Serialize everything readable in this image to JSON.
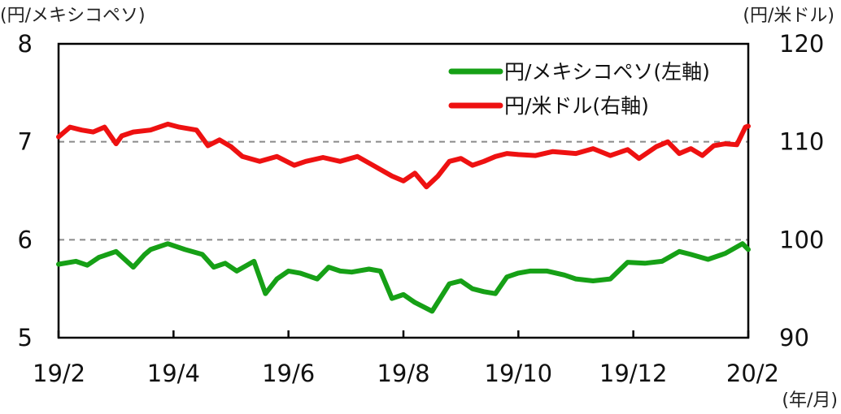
{
  "chart_data": {
    "type": "line",
    "ylabel_left": "(円/メキシコペソ)",
    "ylabel_right": "(円/米ドル)",
    "xlabel": "(年/月)",
    "x_ticks": [
      "19/2",
      "19/4",
      "19/6",
      "19/8",
      "19/10",
      "19/12",
      "20/2"
    ],
    "x_range": [
      0,
      12
    ],
    "y_left": {
      "range": [
        5,
        8
      ],
      "ticks": [
        "5",
        "6",
        "7",
        "8"
      ]
    },
    "y_right": {
      "range": [
        90,
        120
      ],
      "ticks": [
        "90",
        "100",
        "110",
        "120"
      ]
    },
    "gridlines_dashed": [
      6,
      7
    ],
    "legend_position": "top-right",
    "series": [
      {
        "name": "円/メキシコペソ(左軸)",
        "axis": "left",
        "color": "#16a016",
        "x": [
          0,
          0.3,
          0.5,
          0.7,
          1.0,
          1.3,
          1.5,
          1.6,
          1.9,
          2.2,
          2.5,
          2.7,
          2.9,
          3.1,
          3.4,
          3.6,
          3.8,
          4.0,
          4.2,
          4.5,
          4.7,
          4.9,
          5.1,
          5.4,
          5.6,
          5.8,
          6.0,
          6.2,
          6.5,
          6.8,
          7.0,
          7.2,
          7.4,
          7.6,
          7.8,
          8.0,
          8.2,
          8.5,
          8.8,
          9.0,
          9.3,
          9.6,
          9.9,
          10.2,
          10.5,
          10.8,
          11.0,
          11.3,
          11.6,
          11.9,
          12.0
        ],
        "values": [
          5.75,
          5.78,
          5.74,
          5.82,
          5.88,
          5.72,
          5.85,
          5.9,
          5.96,
          5.9,
          5.85,
          5.72,
          5.76,
          5.68,
          5.78,
          5.45,
          5.6,
          5.68,
          5.66,
          5.6,
          5.72,
          5.68,
          5.67,
          5.7,
          5.68,
          5.4,
          5.44,
          5.36,
          5.27,
          5.55,
          5.58,
          5.5,
          5.47,
          5.45,
          5.62,
          5.66,
          5.68,
          5.68,
          5.64,
          5.6,
          5.58,
          5.6,
          5.77,
          5.76,
          5.78,
          5.88,
          5.85,
          5.8,
          5.86,
          5.96,
          5.9
        ]
      },
      {
        "name": "円/米ドル(右軸)",
        "axis": "right",
        "color": "#ee1111",
        "x": [
          0,
          0.2,
          0.4,
          0.6,
          0.8,
          1.0,
          1.1,
          1.3,
          1.6,
          1.9,
          2.1,
          2.4,
          2.6,
          2.8,
          3.0,
          3.2,
          3.5,
          3.8,
          4.1,
          4.3,
          4.6,
          4.9,
          5.2,
          5.5,
          5.8,
          6.0,
          6.2,
          6.4,
          6.6,
          6.8,
          7.0,
          7.2,
          7.4,
          7.6,
          7.8,
          8.0,
          8.3,
          8.6,
          9.0,
          9.3,
          9.6,
          9.9,
          10.1,
          10.4,
          10.6,
          10.8,
          11.0,
          11.2,
          11.4,
          11.6,
          11.8,
          11.95,
          12.0
        ],
        "values": [
          110.5,
          111.5,
          111.2,
          111.0,
          111.5,
          109.8,
          110.6,
          111.0,
          111.2,
          111.8,
          111.5,
          111.2,
          109.6,
          110.2,
          109.5,
          108.5,
          108.0,
          108.5,
          107.6,
          108.0,
          108.4,
          108.0,
          108.5,
          107.5,
          106.5,
          106.0,
          106.8,
          105.4,
          106.5,
          108.0,
          108.3,
          107.6,
          108.0,
          108.5,
          108.8,
          108.7,
          108.6,
          109.0,
          108.8,
          109.3,
          108.6,
          109.2,
          108.3,
          109.5,
          110.0,
          108.8,
          109.3,
          108.6,
          109.6,
          109.8,
          109.7,
          111.5,
          111.6
        ]
      }
    ]
  }
}
